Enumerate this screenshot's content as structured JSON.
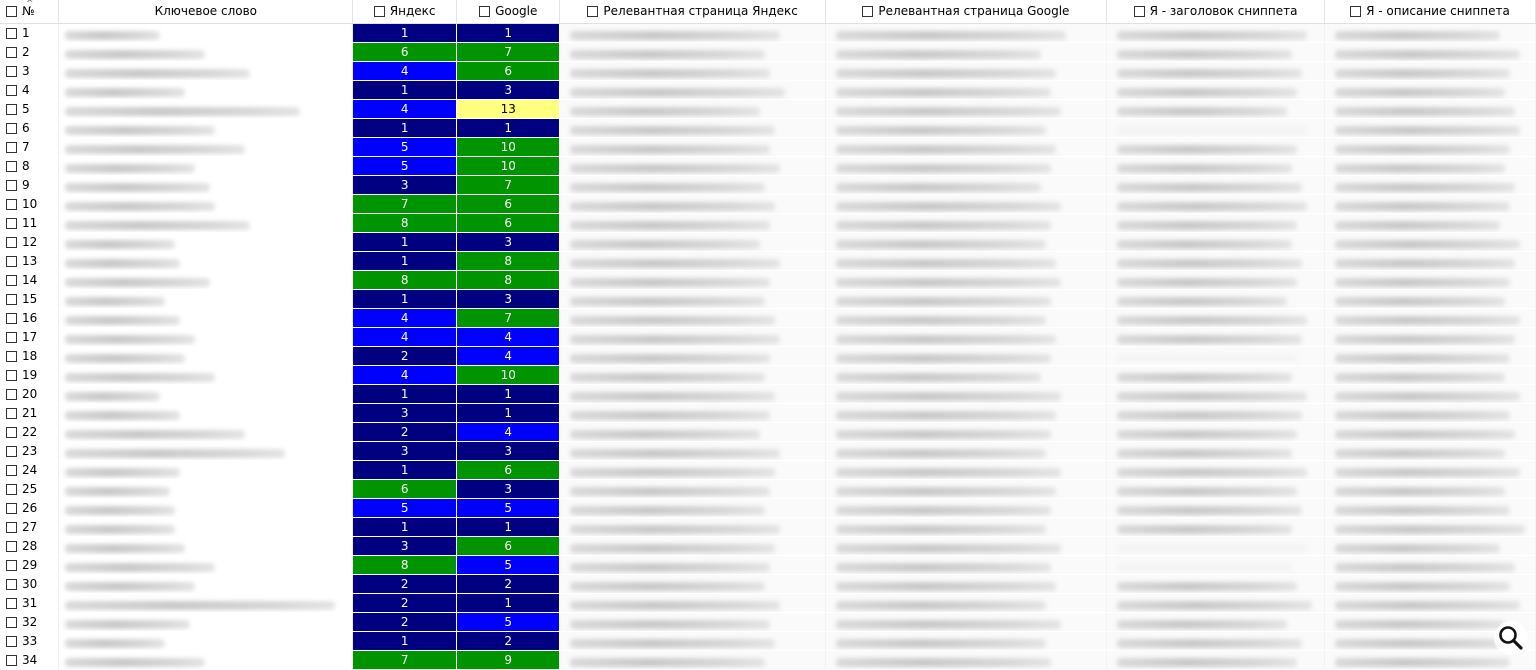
{
  "headers": {
    "number": "№",
    "keyword": "Ключевое слово",
    "yandex": "Яндекс",
    "google": "Google",
    "relevant_yandex": "Релевантная страница Яндекс",
    "relevant_google": "Релевантная страница Google",
    "snippet_title": "Я - заголовок сниппета",
    "snippet_description": "Я - описание сниппета"
  },
  "rows": [
    {
      "n": "1",
      "yandex": "1",
      "google": "1",
      "yc": "dark",
      "gc": "dark"
    },
    {
      "n": "2",
      "yandex": "6",
      "google": "7",
      "yc": "green",
      "gc": "green"
    },
    {
      "n": "3",
      "yandex": "4",
      "google": "6",
      "yc": "blue",
      "gc": "green"
    },
    {
      "n": "4",
      "yandex": "1",
      "google": "3",
      "yc": "dark",
      "gc": "dark"
    },
    {
      "n": "5",
      "yandex": "4",
      "google": "13",
      "yc": "blue",
      "gc": "yellow"
    },
    {
      "n": "6",
      "yandex": "1",
      "google": "1",
      "yc": "dark",
      "gc": "dark"
    },
    {
      "n": "7",
      "yandex": "5",
      "google": "10",
      "yc": "blue",
      "gc": "green"
    },
    {
      "n": "8",
      "yandex": "5",
      "google": "10",
      "yc": "blue",
      "gc": "green"
    },
    {
      "n": "9",
      "yandex": "3",
      "google": "7",
      "yc": "dark",
      "gc": "green"
    },
    {
      "n": "10",
      "yandex": "7",
      "google": "6",
      "yc": "green",
      "gc": "green"
    },
    {
      "n": "11",
      "yandex": "8",
      "google": "6",
      "yc": "green",
      "gc": "green"
    },
    {
      "n": "12",
      "yandex": "1",
      "google": "3",
      "yc": "dark",
      "gc": "dark"
    },
    {
      "n": "13",
      "yandex": "1",
      "google": "8",
      "yc": "dark",
      "gc": "green"
    },
    {
      "n": "14",
      "yandex": "8",
      "google": "8",
      "yc": "green",
      "gc": "green"
    },
    {
      "n": "15",
      "yandex": "1",
      "google": "3",
      "yc": "dark",
      "gc": "dark"
    },
    {
      "n": "16",
      "yandex": "4",
      "google": "7",
      "yc": "blue",
      "gc": "green"
    },
    {
      "n": "17",
      "yandex": "4",
      "google": "4",
      "yc": "blue",
      "gc": "blue"
    },
    {
      "n": "18",
      "yandex": "2",
      "google": "4",
      "yc": "dark",
      "gc": "blue"
    },
    {
      "n": "19",
      "yandex": "4",
      "google": "10",
      "yc": "blue",
      "gc": "green"
    },
    {
      "n": "20",
      "yandex": "1",
      "google": "1",
      "yc": "dark",
      "gc": "dark"
    },
    {
      "n": "21",
      "yandex": "3",
      "google": "1",
      "yc": "dark",
      "gc": "dark"
    },
    {
      "n": "22",
      "yandex": "2",
      "google": "4",
      "yc": "dark",
      "gc": "blue"
    },
    {
      "n": "23",
      "yandex": "3",
      "google": "3",
      "yc": "dark",
      "gc": "dark"
    },
    {
      "n": "24",
      "yandex": "1",
      "google": "6",
      "yc": "dark",
      "gc": "green"
    },
    {
      "n": "25",
      "yandex": "6",
      "google": "3",
      "yc": "green",
      "gc": "dark"
    },
    {
      "n": "26",
      "yandex": "5",
      "google": "5",
      "yc": "blue",
      "gc": "blue"
    },
    {
      "n": "27",
      "yandex": "1",
      "google": "1",
      "yc": "dark",
      "gc": "dark"
    },
    {
      "n": "28",
      "yandex": "3",
      "google": "6",
      "yc": "dark",
      "gc": "green"
    },
    {
      "n": "29",
      "yandex": "8",
      "google": "5",
      "yc": "green",
      "gc": "blue"
    },
    {
      "n": "30",
      "yandex": "2",
      "google": "2",
      "yc": "dark",
      "gc": "dark"
    },
    {
      "n": "31",
      "yandex": "2",
      "google": "1",
      "yc": "dark",
      "gc": "dark"
    },
    {
      "n": "32",
      "yandex": "2",
      "google": "5",
      "yc": "dark",
      "gc": "blue"
    },
    {
      "n": "33",
      "yandex": "1",
      "google": "2",
      "yc": "dark",
      "gc": "dark"
    },
    {
      "n": "34",
      "yandex": "7",
      "google": "9",
      "yc": "green",
      "gc": "green"
    }
  ],
  "colors": {
    "dark": "#000080",
    "blue": "#0000ff",
    "green": "#009400",
    "yellow": "#ffff80"
  },
  "icons": {
    "zoom": "magnifier-icon",
    "sort": "sort-ascending-icon",
    "checkbox": "checkbox-icon"
  }
}
